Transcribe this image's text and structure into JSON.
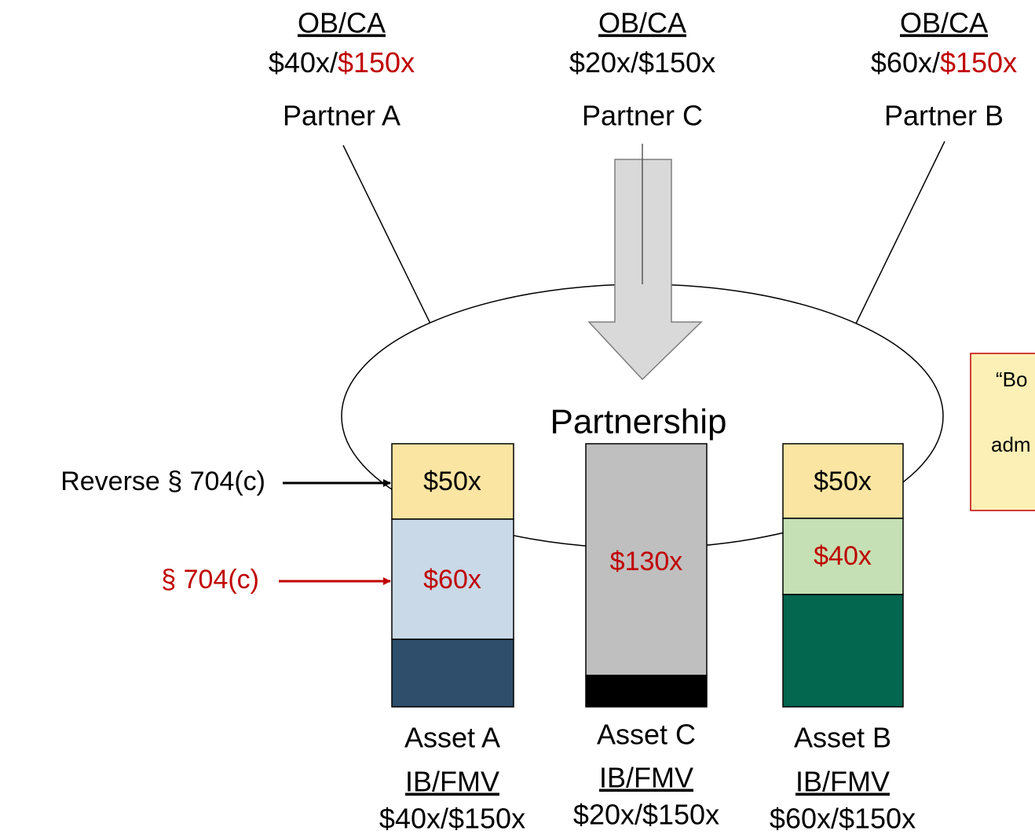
{
  "partners": [
    {
      "header": "OB/CA",
      "values": [
        "$40x/",
        "$150x"
      ],
      "name": "Partner A"
    },
    {
      "header": "OB/CA",
      "values": [
        "$20x/$150x"
      ],
      "name": "Partner C"
    },
    {
      "header": "OB/CA",
      "values": [
        "$60x/",
        "$150x"
      ],
      "name": "Partner B"
    }
  ],
  "partnership": "Partnership",
  "assets": [
    {
      "segments": [
        "$50x",
        "$60x"
      ],
      "name": "Asset A",
      "header": "IB/FMV",
      "values": "$40x/$150x"
    },
    {
      "segments": [
        "$130x"
      ],
      "name": "Asset C",
      "header": "IB/FMV",
      "values": "$20x/$150x"
    },
    {
      "segments": [
        "$50x",
        "$40x"
      ],
      "name": "Asset B",
      "header": "IB/FMV",
      "values": "$60x/$150x"
    }
  ],
  "arrow_labels": [
    "Reverse § 704(c)",
    "§ 704(c)"
  ],
  "callout": [
    "“Bo",
    "adm"
  ]
}
